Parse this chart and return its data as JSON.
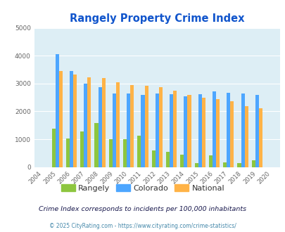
{
  "title": "Rangely Property Crime Index",
  "years": [
    2004,
    2005,
    2006,
    2007,
    2008,
    2009,
    2010,
    2011,
    2012,
    2013,
    2014,
    2015,
    2016,
    2017,
    2018,
    2019,
    2020
  ],
  "rangely": [
    0,
    1380,
    1030,
    1270,
    1590,
    1000,
    1010,
    1130,
    600,
    540,
    450,
    130,
    410,
    170,
    130,
    230,
    0
  ],
  "colorado": [
    0,
    4050,
    3450,
    3000,
    2880,
    2650,
    2650,
    2600,
    2650,
    2620,
    2540,
    2610,
    2720,
    2670,
    2630,
    2590,
    0
  ],
  "national": [
    0,
    3450,
    3330,
    3230,
    3200,
    3040,
    2940,
    2920,
    2870,
    2730,
    2590,
    2490,
    2440,
    2360,
    2190,
    2120,
    0
  ],
  "bar_width": 0.25,
  "ylim": [
    0,
    5000
  ],
  "yticks": [
    0,
    1000,
    2000,
    3000,
    4000,
    5000
  ],
  "color_rangely": "#8dc63f",
  "color_colorado": "#4da6ff",
  "color_national": "#ffb347",
  "plot_bg": "#ddeef5",
  "title_color": "#1155cc",
  "subtitle": "Crime Index corresponds to incidents per 100,000 inhabitants",
  "footer": "© 2025 CityRating.com - https://www.cityrating.com/crime-statistics/",
  "legend_labels": [
    "Rangely",
    "Colorado",
    "National"
  ],
  "subtitle_color": "#1a1a4e",
  "footer_color": "#4488aa"
}
